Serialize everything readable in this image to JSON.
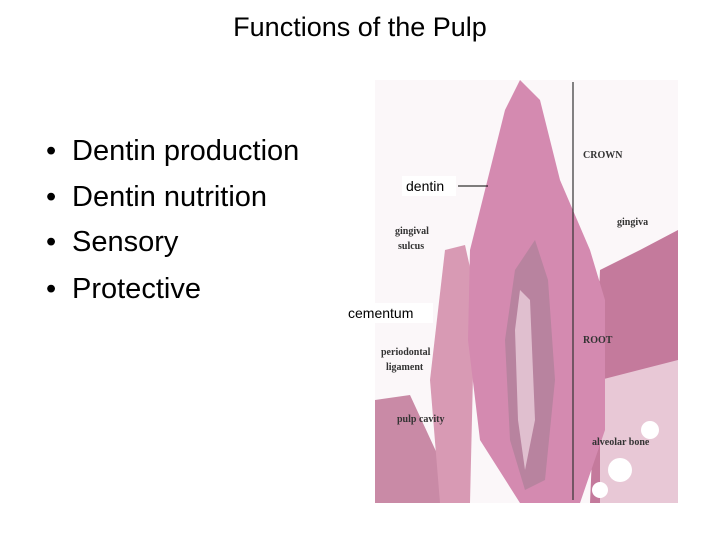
{
  "slide": {
    "title": "Functions of the Pulp",
    "bullets": [
      "Dentin production",
      "Dentin nutrition",
      "Sensory",
      "Protective"
    ],
    "figure": {
      "overlay_labels": [
        "dentin",
        "cementum"
      ],
      "image_labels": {
        "crown": "CROWN",
        "gingiva": "gingiva",
        "gingival_sulcus": [
          "gingival",
          "sulcus"
        ],
        "root": "ROOT",
        "periodontal_ligament": [
          "periodontal",
          "ligament"
        ],
        "pulp_cavity": "pulp cavity",
        "alveolar_bone": "alveolar bone"
      }
    }
  }
}
